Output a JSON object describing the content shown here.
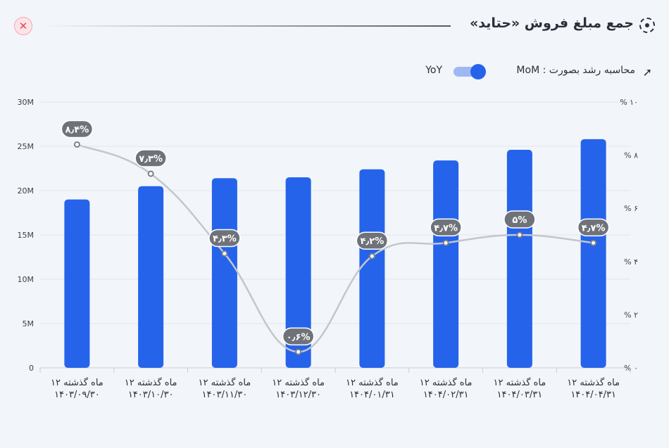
{
  "header": {
    "title": "جمع مبلغ فروش «حتاید»",
    "close_glyph": "✕",
    "title_icon": "dashed-circle-icon"
  },
  "controls": {
    "growth_label": "محاسبه رشد بصورت : MoM",
    "yoy_label": "YoY",
    "growth_icon": "trend-arrow-icon",
    "toggle_state": "MoM"
  },
  "colors": {
    "bar": "#2563eb",
    "line": "#c4c6cc",
    "label_bg": "#6f7278",
    "background": "#f2f5fa"
  },
  "chart_data": {
    "type": "bar",
    "categories": [
      [
        "۱۲ ماه گذشته",
        "۱۴۰۳/۰۹/۳۰"
      ],
      [
        "۱۲ ماه گذشته",
        "۱۴۰۳/۱۰/۳۰"
      ],
      [
        "۱۲ ماه گذشته",
        "۱۴۰۳/۱۱/۳۰"
      ],
      [
        "۱۲ ماه گذشته",
        "۱۴۰۳/۱۲/۳۰"
      ],
      [
        "۱۲ ماه گذشته",
        "۱۴۰۴/۰۱/۳۱"
      ],
      [
        "۱۲ ماه گذشته",
        "۱۴۰۴/۰۲/۳۱"
      ],
      [
        "۱۲ ماه گذشته",
        "۱۴۰۴/۰۳/۳۱"
      ],
      [
        "۱۲ ماه گذشته",
        "۱۴۰۴/۰۴/۳۱"
      ]
    ],
    "bars": {
      "values": [
        19.0,
        20.5,
        21.4,
        21.5,
        22.4,
        23.4,
        24.6,
        25.8
      ],
      "unit": "M"
    },
    "line": {
      "values": [
        8.4,
        7.3,
        4.3,
        0.6,
        4.2,
        4.7,
        5.0,
        4.7
      ],
      "labels": [
        "۸٫۴%",
        "۷٫۳%",
        "۴٫۳%",
        "۰٫۶%",
        "۴٫۲%",
        "۴٫۷%",
        "۵%",
        "۴٫۷%"
      ]
    },
    "y_left": {
      "range": [
        0,
        30
      ],
      "ticks": [
        0,
        5,
        10,
        15,
        20,
        25,
        30
      ],
      "tick_labels": [
        "0",
        "5M",
        "10M",
        "15M",
        "20M",
        "25M",
        "30M"
      ]
    },
    "y_right": {
      "range": [
        0,
        10
      ],
      "ticks": [
        0,
        2,
        4,
        6,
        8,
        10
      ],
      "tick_labels": [
        "% ۰",
        "% ۲",
        "% ۴",
        "% ۶",
        "% ۸",
        "% ۱۰"
      ]
    },
    "grid": true,
    "legend": "none"
  }
}
